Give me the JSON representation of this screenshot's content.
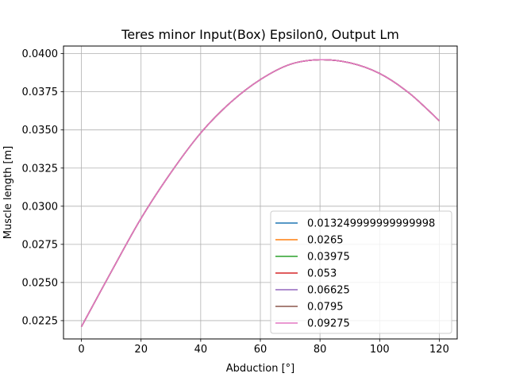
{
  "chart_data": {
    "type": "line",
    "title": "Teres minor Input(Box) Epsilon0, Output Lm",
    "xlabel": "Abduction [°]",
    "ylabel": "Muscle length [m]",
    "xlim": [
      -6,
      126
    ],
    "ylim": [
      0.0213,
      0.0405
    ],
    "xticks": [
      0,
      20,
      40,
      60,
      80,
      100,
      120
    ],
    "xtick_labels": [
      "0",
      "20",
      "40",
      "60",
      "80",
      "100",
      "120"
    ],
    "yticks": [
      0.0225,
      0.025,
      0.0275,
      0.03,
      0.0325,
      0.035,
      0.0375,
      0.04
    ],
    "ytick_labels": [
      "0.0225",
      "0.0250",
      "0.0275",
      "0.0300",
      "0.0325",
      "0.0350",
      "0.0375",
      "0.0400"
    ],
    "grid": true,
    "legend_position": "lower-right",
    "x": [
      0,
      10,
      20,
      30,
      40,
      50,
      60,
      70,
      80,
      90,
      100,
      110,
      120
    ],
    "series": [
      {
        "name": "0.013249999999999998",
        "color": "#1f77b4",
        "values": [
          0.0221,
          0.0257,
          0.0292,
          0.0322,
          0.0348,
          0.0368,
          0.0383,
          0.0393,
          0.0396,
          0.0394,
          0.0387,
          0.0374,
          0.0356
        ]
      },
      {
        "name": "0.0265",
        "color": "#ff7f0e",
        "values": [
          0.0221,
          0.0257,
          0.0292,
          0.0322,
          0.0348,
          0.0368,
          0.0383,
          0.0393,
          0.0396,
          0.0394,
          0.0387,
          0.0374,
          0.0356
        ]
      },
      {
        "name": "0.03975",
        "color": "#2ca02c",
        "values": [
          0.0221,
          0.0257,
          0.0292,
          0.0322,
          0.0348,
          0.0368,
          0.0383,
          0.0393,
          0.0396,
          0.0394,
          0.0387,
          0.0374,
          0.0356
        ]
      },
      {
        "name": "0.053",
        "color": "#d62728",
        "values": [
          0.0221,
          0.0257,
          0.0292,
          0.0322,
          0.0348,
          0.0368,
          0.0383,
          0.0393,
          0.0396,
          0.0394,
          0.0387,
          0.0374,
          0.0356
        ]
      },
      {
        "name": "0.06625",
        "color": "#9467bd",
        "values": [
          0.0221,
          0.0257,
          0.0292,
          0.0322,
          0.0348,
          0.0368,
          0.0383,
          0.0393,
          0.0396,
          0.0394,
          0.0387,
          0.0374,
          0.0356
        ]
      },
      {
        "name": "0.0795",
        "color": "#8c564b",
        "values": [
          0.0221,
          0.0257,
          0.0292,
          0.0322,
          0.0348,
          0.0368,
          0.0383,
          0.0393,
          0.0396,
          0.0394,
          0.0387,
          0.0374,
          0.0356
        ]
      },
      {
        "name": "0.09275",
        "color": "#e377c2",
        "values": [
          0.0221,
          0.0257,
          0.0292,
          0.0322,
          0.0348,
          0.0368,
          0.0383,
          0.0393,
          0.0396,
          0.0394,
          0.0387,
          0.0374,
          0.0356
        ]
      }
    ]
  }
}
